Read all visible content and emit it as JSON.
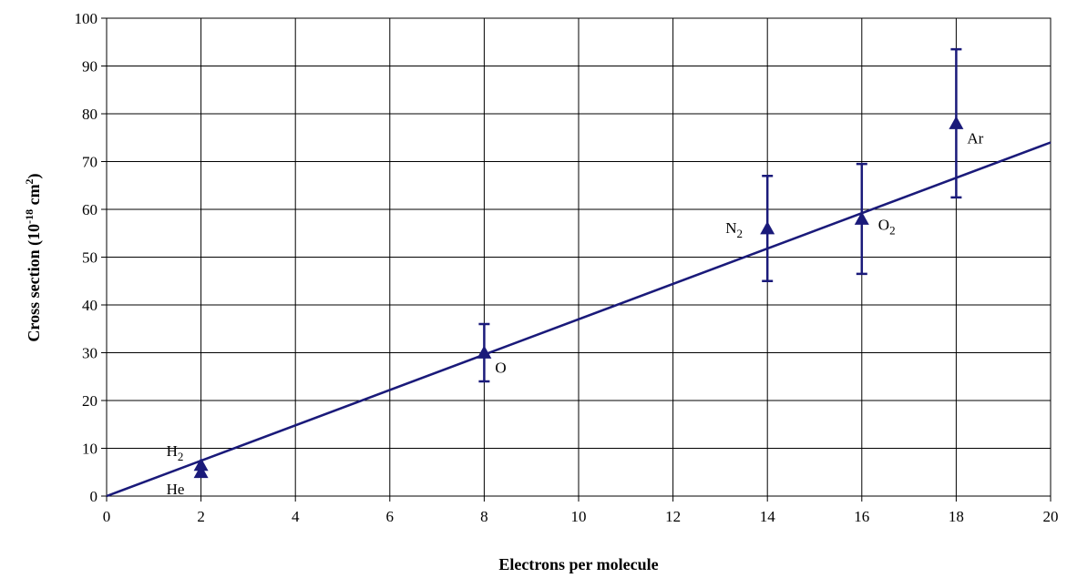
{
  "chart_data": {
    "type": "scatter",
    "title": "",
    "xlabel": "Electrons per molecule",
    "ylabel_main": "Cross section (10",
    "ylabel_exp": "-18",
    "ylabel_unit": " cm",
    "ylabel_unit_exp": "2",
    "ylabel_close": ")",
    "xlim": [
      0,
      20
    ],
    "ylim": [
      0,
      100
    ],
    "x_ticks": [
      "0",
      "2",
      "4",
      "6",
      "8",
      "10",
      "12",
      "14",
      "16",
      "18",
      "20"
    ],
    "y_ticks": [
      "0",
      "10",
      "20",
      "30",
      "40",
      "50",
      "60",
      "70",
      "80",
      "90",
      "100"
    ],
    "grid": true,
    "legend": "none",
    "colors": {
      "series": "#1a1a7a",
      "grid": "#000000"
    },
    "points": [
      {
        "x": 2,
        "y": 6.5,
        "err_lo": 6.5,
        "err_hi": 6.5,
        "label": "H",
        "sub": "2",
        "label_pos": "above-left"
      },
      {
        "x": 2,
        "y": 5.0,
        "err_lo": 5.0,
        "err_hi": 5.0,
        "label": "He",
        "sub": "",
        "label_pos": "below-left"
      },
      {
        "x": 8,
        "y": 30,
        "err_lo": 24,
        "err_hi": 36,
        "label": "O",
        "sub": "",
        "label_pos": "right-below"
      },
      {
        "x": 14,
        "y": 56,
        "err_lo": 45,
        "err_hi": 67,
        "label": "N",
        "sub": "2",
        "label_pos": "left"
      },
      {
        "x": 16,
        "y": 58,
        "err_lo": 46.5,
        "err_hi": 69.5,
        "label": "O",
        "sub": "2",
        "label_pos": "right"
      },
      {
        "x": 18,
        "y": 78,
        "err_lo": 62.5,
        "err_hi": 93.5,
        "label": "Ar",
        "sub": "",
        "label_pos": "right-below"
      }
    ],
    "fit_line": {
      "x": [
        0,
        20
      ],
      "y": [
        0,
        74
      ]
    }
  }
}
